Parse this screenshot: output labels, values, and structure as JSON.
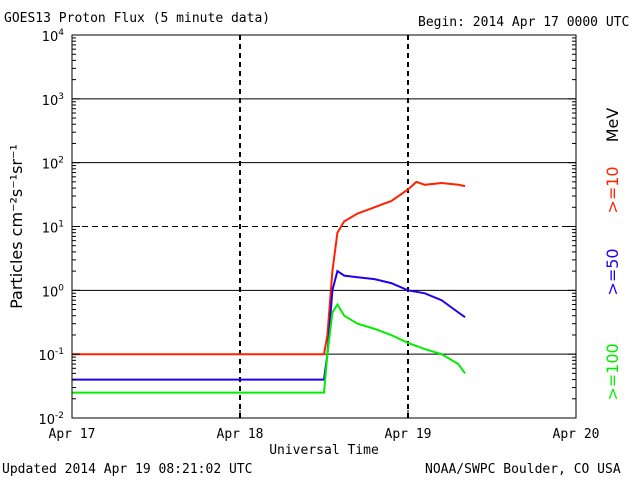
{
  "chart_data": {
    "type": "line",
    "title": "GOES13 Proton Flux (5 minute data)",
    "begin": "Begin: 2014 Apr 17 0000 UTC",
    "xlabel": "Universal Time",
    "ylabel": "Particles cm⁻²s⁻¹sr⁻¹",
    "yscale": "log",
    "ylim": [
      0.01,
      10000
    ],
    "xlim_days": [
      0,
      3
    ],
    "x_ticks": [
      "Apr 17",
      "Apr 18",
      "Apr 19",
      "Apr 20"
    ],
    "y_ticks": [
      {
        "base": "10",
        "exp": "4"
      },
      {
        "base": "10",
        "exp": "3"
      },
      {
        "base": "10",
        "exp": "2"
      },
      {
        "base": "10",
        "exp": "1"
      },
      {
        "base": "10",
        "exp": "0"
      },
      {
        "base": "10",
        "exp": "-1"
      },
      {
        "base": "10",
        "exp": "-2"
      }
    ],
    "grid": true,
    "units_label": "MeV",
    "series": [
      {
        "name": ">=10",
        "color": "#ff2200",
        "points": [
          [
            0,
            0.1
          ],
          [
            0.25,
            0.1
          ],
          [
            0.5,
            0.1
          ],
          [
            0.75,
            0.1
          ],
          [
            1.0,
            0.1
          ],
          [
            1.25,
            0.1
          ],
          [
            1.5,
            0.1
          ],
          [
            1.52,
            0.2
          ],
          [
            1.55,
            2.0
          ],
          [
            1.58,
            8.0
          ],
          [
            1.62,
            12
          ],
          [
            1.7,
            16
          ],
          [
            1.8,
            20
          ],
          [
            1.9,
            25
          ],
          [
            2.0,
            38
          ],
          [
            2.05,
            50
          ],
          [
            2.1,
            45
          ],
          [
            2.2,
            48
          ],
          [
            2.3,
            45
          ],
          [
            2.34,
            43
          ]
        ]
      },
      {
        "name": ">=50",
        "color": "#2200ee",
        "points": [
          [
            0,
            0.04
          ],
          [
            0.25,
            0.04
          ],
          [
            0.5,
            0.04
          ],
          [
            0.75,
            0.04
          ],
          [
            1.0,
            0.04
          ],
          [
            1.25,
            0.04
          ],
          [
            1.5,
            0.04
          ],
          [
            1.52,
            0.1
          ],
          [
            1.55,
            1.0
          ],
          [
            1.58,
            2.0
          ],
          [
            1.62,
            1.7
          ],
          [
            1.7,
            1.6
          ],
          [
            1.8,
            1.5
          ],
          [
            1.9,
            1.3
          ],
          [
            2.0,
            1.0
          ],
          [
            2.1,
            0.9
          ],
          [
            2.2,
            0.7
          ],
          [
            2.3,
            0.45
          ],
          [
            2.34,
            0.38
          ]
        ]
      },
      {
        "name": ">=100",
        "color": "#00ee00",
        "points": [
          [
            0,
            0.025
          ],
          [
            0.25,
            0.025
          ],
          [
            0.5,
            0.025
          ],
          [
            0.75,
            0.025
          ],
          [
            1.0,
            0.025
          ],
          [
            1.25,
            0.025
          ],
          [
            1.5,
            0.025
          ],
          [
            1.52,
            0.1
          ],
          [
            1.55,
            0.45
          ],
          [
            1.58,
            0.6
          ],
          [
            1.62,
            0.4
          ],
          [
            1.7,
            0.3
          ],
          [
            1.8,
            0.25
          ],
          [
            1.9,
            0.2
          ],
          [
            2.0,
            0.15
          ],
          [
            2.1,
            0.12
          ],
          [
            2.2,
            0.1
          ],
          [
            2.3,
            0.07
          ],
          [
            2.34,
            0.05
          ]
        ]
      }
    ]
  },
  "footer": {
    "updated": "Updated 2014 Apr 19 08:21:02 UTC",
    "source": "NOAA/SWPC Boulder, CO USA"
  }
}
